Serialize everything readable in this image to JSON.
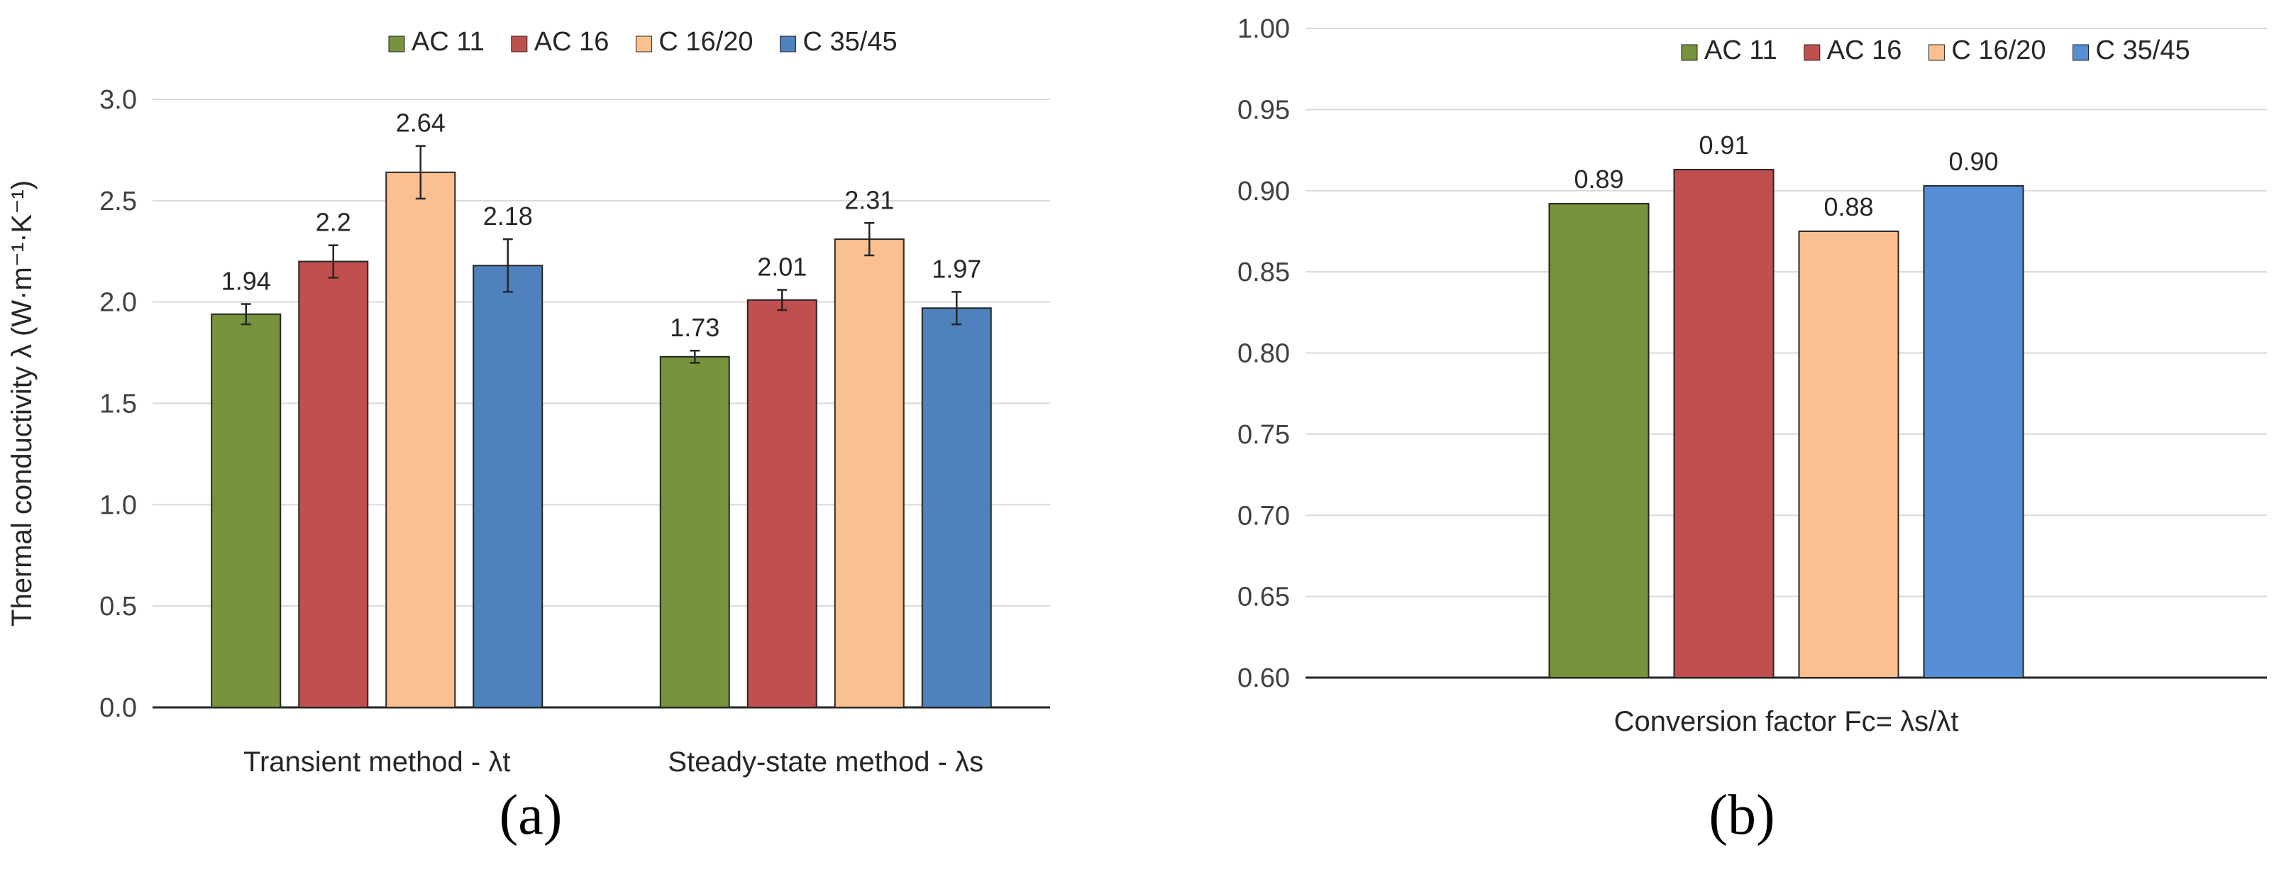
{
  "chart_data": [
    {
      "panel": "(a)",
      "type": "bar",
      "ylabel": "Thermal conductivity  λ (W·m⁻¹·K⁻¹)",
      "ylim": [
        0,
        3.0
      ],
      "yticks": [
        "0.0",
        "0.5",
        "1.0",
        "1.5",
        "2.0",
        "2.5",
        "3.0"
      ],
      "categories": [
        "Transient method  - λt",
        "Steady-state method  - λs"
      ],
      "legend_position": "top",
      "series": [
        {
          "name": "AC 11",
          "color": "#77933c",
          "values": [
            1.94,
            1.73
          ],
          "errors": [
            0.05,
            0.03
          ],
          "labels": [
            "1.94",
            "1.73"
          ]
        },
        {
          "name": "AC 16",
          "color": "#c0504d",
          "values": [
            2.2,
            2.01
          ],
          "errors": [
            0.08,
            0.05
          ],
          "labels": [
            "2.2",
            "2.01"
          ]
        },
        {
          "name": "C 16/20",
          "color": "#fac090",
          "values": [
            2.64,
            2.31
          ],
          "errors": [
            0.13,
            0.08
          ],
          "labels": [
            "2.64",
            "2.31"
          ]
        },
        {
          "name": "C 35/45",
          "color": "#4f81bd",
          "values": [
            2.18,
            1.97
          ],
          "errors": [
            0.13,
            0.08
          ],
          "labels": [
            "2.18",
            "1.97"
          ]
        }
      ]
    },
    {
      "panel": "(b)",
      "type": "bar",
      "ylabel": "",
      "ylim": [
        0.6,
        1.0
      ],
      "yticks": [
        "0.60",
        "0.65",
        "0.70",
        "0.75",
        "0.80",
        "0.85",
        "0.90",
        "0.95",
        "1.00"
      ],
      "categories": [
        "Conversion factor  Fc= λs/λt"
      ],
      "legend_position": "top-right",
      "series": [
        {
          "name": "AC 11",
          "color": "#77933c",
          "values": [
            0.892
          ],
          "labels": [
            "0.89"
          ]
        },
        {
          "name": "AC 16",
          "color": "#c0504d",
          "values": [
            0.913
          ],
          "labels": [
            "0.91"
          ]
        },
        {
          "name": "C 16/20",
          "color": "#fac090",
          "values": [
            0.875
          ],
          "labels": [
            "0.88"
          ]
        },
        {
          "name": "C 35/45",
          "color": "#558ed5",
          "values": [
            0.903
          ],
          "labels": [
            "0.90"
          ]
        }
      ]
    }
  ]
}
